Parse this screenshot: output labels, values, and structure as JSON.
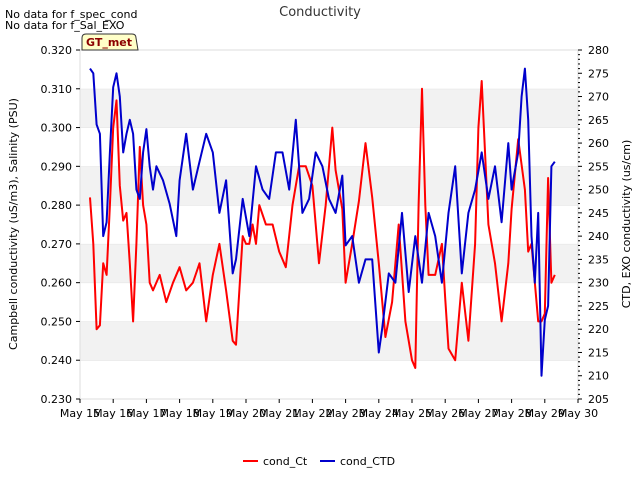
{
  "notes": [
    "No data for f_spec_cond",
    "No data for f_Sal_EXO"
  ],
  "badge": "GT_met",
  "chart_data": {
    "type": "line",
    "title": "Conductivity",
    "xlabel": "",
    "ylabel_left": "Campbell conductivity (uS/m3), Salinity (PSU)",
    "ylabel_right": "CTD, EXO conductivity (us/cm)",
    "x_range": [
      "May 15",
      "May 30"
    ],
    "x_ticks": [
      "May 15",
      "May 16",
      "May 17",
      "May 18",
      "May 19",
      "May 20",
      "May 21",
      "May 22",
      "May 23",
      "May 24",
      "May 25",
      "May 26",
      "May 27",
      "May 28",
      "May 29",
      "May 30"
    ],
    "y_left_range": [
      0.23,
      0.32
    ],
    "y_left_ticks": [
      "0.230",
      "0.240",
      "0.250",
      "0.260",
      "0.270",
      "0.280",
      "0.290",
      "0.300",
      "0.310",
      "0.320"
    ],
    "y_right_range": [
      205,
      280
    ],
    "y_right_ticks": [
      "205",
      "210",
      "215",
      "220",
      "225",
      "230",
      "235",
      "240",
      "245",
      "250",
      "255",
      "260",
      "265",
      "270",
      "275",
      "280"
    ],
    "grid": "horizontal bands",
    "legend_position": "bottom",
    "series": [
      {
        "name": "cond_Ct",
        "axis": "left",
        "color": "#ff0000",
        "x": [
          15.3,
          15.4,
          15.5,
          15.6,
          15.7,
          15.8,
          15.9,
          16.0,
          16.1,
          16.2,
          16.3,
          16.4,
          16.5,
          16.6,
          16.7,
          16.8,
          16.9,
          17.0,
          17.1,
          17.2,
          17.4,
          17.6,
          17.8,
          18.0,
          18.2,
          18.4,
          18.6,
          18.8,
          19.0,
          19.2,
          19.4,
          19.6,
          19.7,
          19.9,
          20.0,
          20.1,
          20.2,
          20.3,
          20.4,
          20.6,
          20.8,
          21.0,
          21.2,
          21.4,
          21.6,
          21.8,
          22.0,
          22.2,
          22.4,
          22.6,
          22.7,
          22.9,
          23.0,
          23.2,
          23.4,
          23.6,
          23.8,
          24.0,
          24.2,
          24.4,
          24.6,
          24.8,
          25.0,
          25.1,
          25.2,
          25.3,
          25.4,
          25.5,
          25.7,
          25.9,
          26.0,
          26.1,
          26.3,
          26.5,
          26.7,
          26.9,
          27.0,
          27.1,
          27.3,
          27.5,
          27.7,
          27.9,
          28.0,
          28.2,
          28.4,
          28.5,
          28.6,
          28.8,
          28.9,
          29.0,
          29.1,
          29.2,
          29.3
        ],
        "y": [
          0.282,
          0.27,
          0.248,
          0.249,
          0.265,
          0.262,
          0.28,
          0.3,
          0.307,
          0.285,
          0.276,
          0.278,
          0.265,
          0.25,
          0.27,
          0.295,
          0.28,
          0.275,
          0.26,
          0.258,
          0.262,
          0.255,
          0.26,
          0.264,
          0.258,
          0.26,
          0.265,
          0.25,
          0.262,
          0.27,
          0.258,
          0.245,
          0.244,
          0.272,
          0.27,
          0.27,
          0.275,
          0.27,
          0.28,
          0.275,
          0.275,
          0.268,
          0.264,
          0.28,
          0.29,
          0.29,
          0.285,
          0.265,
          0.28,
          0.3,
          0.289,
          0.279,
          0.26,
          0.27,
          0.281,
          0.296,
          0.282,
          0.265,
          0.246,
          0.255,
          0.275,
          0.25,
          0.24,
          0.238,
          0.28,
          0.31,
          0.28,
          0.262,
          0.262,
          0.27,
          0.256,
          0.243,
          0.24,
          0.26,
          0.245,
          0.27,
          0.3,
          0.312,
          0.275,
          0.265,
          0.25,
          0.265,
          0.279,
          0.297,
          0.284,
          0.268,
          0.27,
          0.25,
          0.25,
          0.252,
          0.287,
          0.26,
          0.262
        ]
      },
      {
        "name": "cond_CTD",
        "axis": "right",
        "color": "#0000cc",
        "x": [
          15.3,
          15.4,
          15.5,
          15.6,
          15.7,
          15.8,
          15.9,
          16.0,
          16.1,
          16.2,
          16.3,
          16.4,
          16.5,
          16.6,
          16.7,
          16.8,
          16.9,
          17.0,
          17.1,
          17.2,
          17.3,
          17.5,
          17.7,
          17.9,
          18.0,
          18.2,
          18.4,
          18.6,
          18.8,
          19.0,
          19.2,
          19.4,
          19.6,
          19.7,
          19.9,
          20.1,
          20.3,
          20.5,
          20.7,
          20.9,
          21.1,
          21.3,
          21.5,
          21.7,
          21.9,
          22.1,
          22.3,
          22.5,
          22.7,
          22.9,
          23.0,
          23.2,
          23.4,
          23.6,
          23.8,
          24.0,
          24.1,
          24.3,
          24.5,
          24.7,
          24.9,
          25.1,
          25.3,
          25.5,
          25.7,
          25.9,
          26.1,
          26.3,
          26.5,
          26.7,
          26.9,
          27.1,
          27.3,
          27.5,
          27.7,
          27.9,
          28.0,
          28.2,
          28.3,
          28.4,
          28.5,
          28.6,
          28.7,
          28.8,
          28.9,
          29.0,
          29.1,
          29.2,
          29.3
        ],
        "y": [
          276,
          275,
          264,
          262,
          240,
          243,
          258,
          272,
          275,
          270,
          258,
          262,
          265,
          262,
          250,
          248,
          258,
          263,
          255,
          250,
          255,
          252,
          247,
          240,
          252,
          262,
          250,
          256,
          262,
          258,
          245,
          252,
          232,
          235,
          248,
          240,
          255,
          250,
          248,
          258,
          258,
          250,
          265,
          245,
          248,
          258,
          255,
          248,
          245,
          253,
          238,
          240,
          230,
          235,
          235,
          215,
          220,
          232,
          230,
          245,
          228,
          240,
          230,
          245,
          240,
          230,
          245,
          255,
          232,
          245,
          250,
          258,
          248,
          255,
          243,
          260,
          250,
          258,
          270,
          276,
          265,
          240,
          230,
          245,
          210,
          222,
          225,
          255,
          256
        ]
      }
    ]
  }
}
